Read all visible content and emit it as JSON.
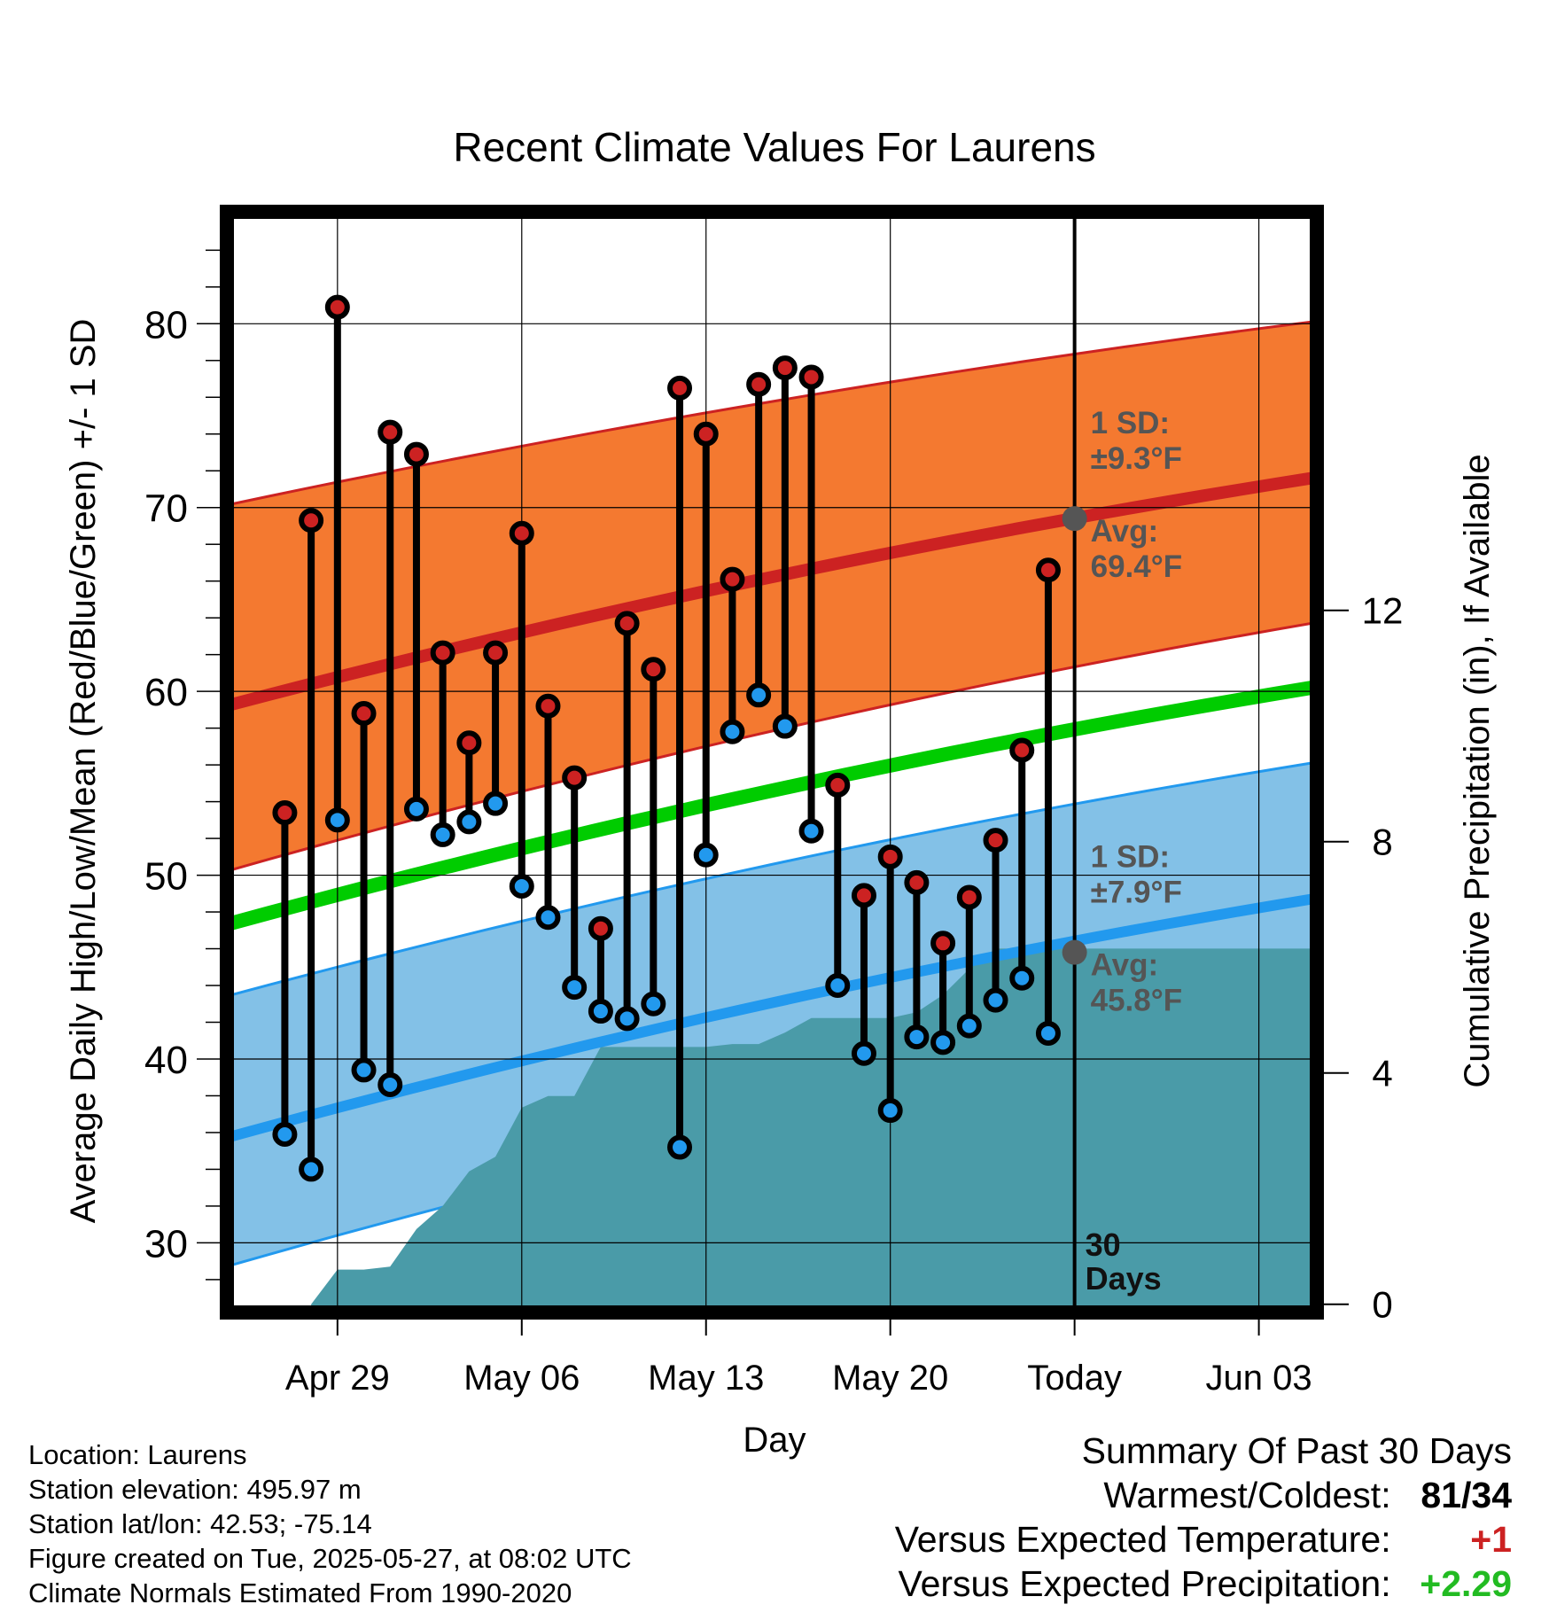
{
  "chart_data": {
    "type": "line",
    "title": "Recent Climate Values For Laurens",
    "xlabel": "Day",
    "ylabel": "Average Daily High/Low/Mean (Red/Blue/Green) +/- 1 SD",
    "y2label": "Cumulative Precipitation (in), If Available",
    "xlim": [
      "2025-04-25",
      "2025-06-05"
    ],
    "ylim": [
      26.5,
      85.8
    ],
    "y2lim": [
      -0.05,
      18.8
    ],
    "x_ticks": [
      {
        "date": "2025-04-29",
        "label": "Apr 29"
      },
      {
        "date": "2025-05-06",
        "label": "May 06"
      },
      {
        "date": "2025-05-13",
        "label": "May 13"
      },
      {
        "date": "2025-05-20",
        "label": "May 20"
      },
      {
        "date": "2025-05-27",
        "label": "Today"
      },
      {
        "date": "2025-06-03",
        "label": "Jun 03"
      }
    ],
    "y_ticks": [
      30,
      40,
      50,
      60,
      70,
      80
    ],
    "y2_ticks": [
      0,
      4,
      8,
      12
    ],
    "grid": true,
    "today": "2025-05-27",
    "today_label": "30 Days",
    "series": [
      {
        "name": "Daily High",
        "color": "#cc2222",
        "dates": [
          "2025-04-27",
          "2025-04-28",
          "2025-04-29",
          "2025-04-30",
          "2025-05-01",
          "2025-05-02",
          "2025-05-03",
          "2025-05-04",
          "2025-05-05",
          "2025-05-06",
          "2025-05-07",
          "2025-05-08",
          "2025-05-09",
          "2025-05-10",
          "2025-05-11",
          "2025-05-12",
          "2025-05-13",
          "2025-05-14",
          "2025-05-15",
          "2025-05-16",
          "2025-05-17",
          "2025-05-18",
          "2025-05-19",
          "2025-05-20",
          "2025-05-21",
          "2025-05-22",
          "2025-05-23",
          "2025-05-24",
          "2025-05-25",
          "2025-05-26"
        ],
        "values": [
          53.4,
          69.3,
          80.9,
          58.8,
          74.1,
          72.9,
          62.1,
          57.2,
          62.1,
          68.6,
          59.2,
          55.3,
          47.1,
          63.7,
          61.2,
          76.5,
          74.0,
          66.1,
          76.7,
          77.6,
          77.1,
          54.9,
          48.9,
          51.0,
          49.6,
          46.3,
          48.8,
          51.9,
          56.8,
          66.6
        ]
      },
      {
        "name": "Daily Low",
        "color": "#2299ee",
        "dates": [
          "2025-04-27",
          "2025-04-28",
          "2025-04-29",
          "2025-04-30",
          "2025-05-01",
          "2025-05-02",
          "2025-05-03",
          "2025-05-04",
          "2025-05-05",
          "2025-05-06",
          "2025-05-07",
          "2025-05-08",
          "2025-05-09",
          "2025-05-10",
          "2025-05-11",
          "2025-05-12",
          "2025-05-13",
          "2025-05-14",
          "2025-05-15",
          "2025-05-16",
          "2025-05-17",
          "2025-05-18",
          "2025-05-19",
          "2025-05-20",
          "2025-05-21",
          "2025-05-22",
          "2025-05-23",
          "2025-05-24",
          "2025-05-25",
          "2025-05-26"
        ],
        "values": [
          35.9,
          34.0,
          53.0,
          39.4,
          38.6,
          53.6,
          52.2,
          52.9,
          53.9,
          49.4,
          47.7,
          43.9,
          42.6,
          42.2,
          43.0,
          35.2,
          51.1,
          57.8,
          59.8,
          58.1,
          52.4,
          44.0,
          40.3,
          37.2,
          41.2,
          40.9,
          41.8,
          43.2,
          44.4,
          41.4
        ]
      },
      {
        "name": "Normal High",
        "color": "#cc2222",
        "dates": [
          "2025-04-25",
          "2025-06-05"
        ],
        "values": [
          59.3,
          71.6
        ]
      },
      {
        "name": "Normal High +/- 1 SD",
        "color": "#f47930",
        "dates": [
          "2025-04-25",
          "2025-06-05"
        ],
        "upper": [
          70.2,
          80.1
        ],
        "lower": [
          50.3,
          63.7
        ]
      },
      {
        "name": "Normal Mean",
        "color": "#00cc00",
        "dates": [
          "2025-04-25",
          "2025-06-05"
        ],
        "values": [
          47.4,
          60.2
        ]
      },
      {
        "name": "Normal Low",
        "color": "#2299ee",
        "dates": [
          "2025-04-25",
          "2025-06-05"
        ],
        "values": [
          35.8,
          48.7
        ]
      },
      {
        "name": "Normal Low +/- 1 SD",
        "color": "#83c1e7",
        "dates": [
          "2025-04-25",
          "2025-06-05"
        ],
        "upper": [
          43.5,
          56.1
        ],
        "lower": [
          28.8,
          42.2
        ]
      },
      {
        "name": "Cumulative Precipitation",
        "color": "#4a9ba8",
        "axis": "y2",
        "dates": [
          "2025-04-28",
          "2025-04-29",
          "2025-04-30",
          "2025-05-01",
          "2025-05-02",
          "2025-05-03",
          "2025-05-04",
          "2025-05-05",
          "2025-05-06",
          "2025-05-07",
          "2025-05-08",
          "2025-05-09",
          "2025-05-10",
          "2025-05-11",
          "2025-05-12",
          "2025-05-13",
          "2025-05-14",
          "2025-05-15",
          "2025-05-16",
          "2025-05-17",
          "2025-05-18",
          "2025-05-19",
          "2025-05-20",
          "2025-05-21",
          "2025-05-22",
          "2025-05-23",
          "2025-05-24",
          "2025-05-25",
          "2025-05-26",
          "2025-05-27",
          "2025-06-05"
        ],
        "values": [
          0.0,
          0.6,
          0.6,
          0.65,
          1.3,
          1.7,
          2.3,
          2.55,
          3.4,
          3.6,
          3.6,
          4.45,
          4.45,
          4.45,
          4.45,
          4.45,
          4.5,
          4.5,
          4.7,
          4.95,
          4.95,
          4.95,
          4.95,
          5.05,
          5.35,
          5.8,
          6.15,
          6.15,
          6.15,
          6.15,
          6.15
        ]
      }
    ],
    "annotations": [
      {
        "sd_label": "1 SD:",
        "sd_value": "±9.3°F",
        "avg_label": "Avg:",
        "avg_value": "69.4°F",
        "avg": 69.4,
        "color": "#555555"
      },
      {
        "sd_label": "1 SD:",
        "sd_value": "±7.9°F",
        "avg_label": "Avg:",
        "avg_value": "45.8°F",
        "avg": 45.8,
        "color": "#555555"
      }
    ]
  },
  "footer": {
    "location": "Location: Laurens",
    "elevation": "Station elevation: 495.97 m",
    "latlon": "Station lat/lon: 42.53; -75.14",
    "created": "Figure created on Tue, 2025-05-27, at 08:02 UTC",
    "normals": "Climate Normals Estimated From 1990-2020"
  },
  "summary": {
    "title": "Summary Of Past 30 Days",
    "warmest_label": "Warmest/Coldest:",
    "warmest_value": "81/34",
    "temp_label": "Versus Expected Temperature:",
    "temp_value": "+1",
    "temp_color": "#cc2222",
    "precip_label": "Versus Expected Precipitation:",
    "precip_value": "+2.29",
    "precip_color": "#22bb22"
  }
}
